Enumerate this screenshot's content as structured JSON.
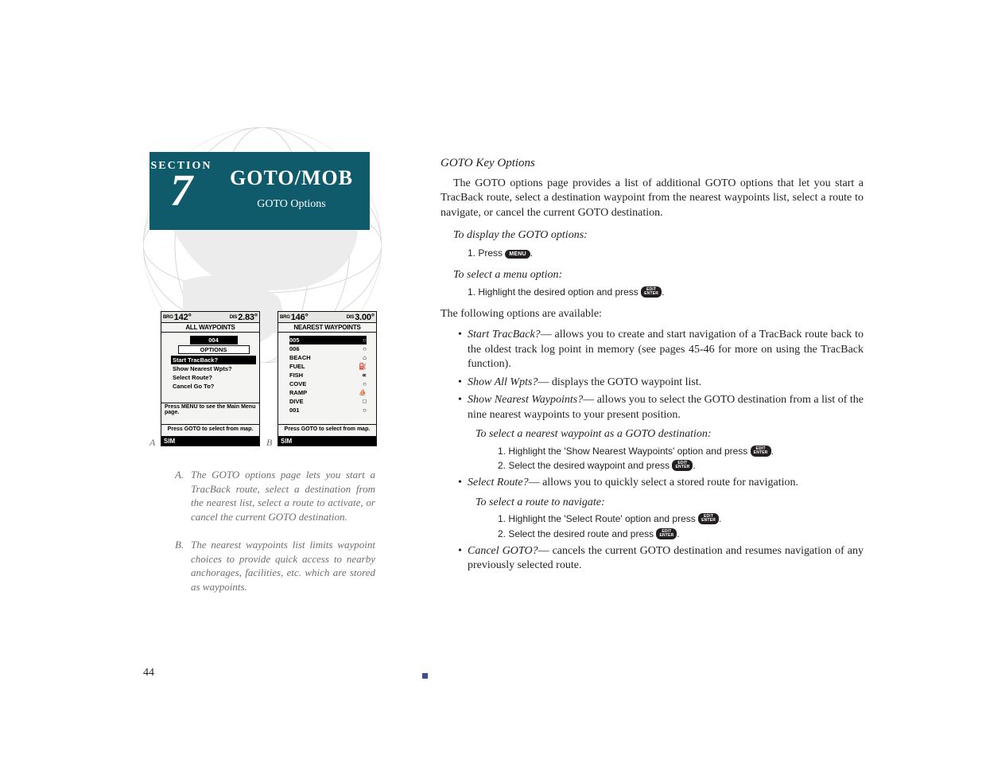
{
  "section": {
    "label": "SECTION",
    "number": "7",
    "title": "GOTO/MOB",
    "subtitle": "GOTO Options"
  },
  "screenshots": {
    "a": {
      "label": "A",
      "brg_label": "BRG",
      "brg_value": "142°",
      "dis_label": "DIS",
      "dis_value": "2.83°",
      "title": "ALL WAYPOINTS",
      "top_item": "004",
      "options_header": "OPTIONS",
      "items": [
        {
          "label": "Start TracBack?",
          "selected": true
        },
        {
          "label": "Show Nearest Wpts?",
          "selected": false
        },
        {
          "label": "Select Route?",
          "selected": false
        },
        {
          "label": "Cancel Go To?",
          "selected": false
        }
      ],
      "hint1": "Press MENU to see the Main Menu page.",
      "hint2": "Press GOTO to select from map.",
      "footer": "SIM"
    },
    "b": {
      "label": "B",
      "brg_label": "BRG",
      "brg_value": "146°",
      "dis_label": "DIS",
      "dis_value": "3.00°",
      "title": "NEAREST WAYPOINTS",
      "rows": [
        {
          "name": "005",
          "sym": "circle",
          "selected": true
        },
        {
          "name": "006",
          "sym": "circle"
        },
        {
          "name": "BEACH",
          "sym": "house"
        },
        {
          "name": "FUEL",
          "sym": "fuel"
        },
        {
          "name": "FISH",
          "sym": "fish"
        },
        {
          "name": "COVE",
          "sym": "circle"
        },
        {
          "name": "RAMP",
          "sym": "boat"
        },
        {
          "name": "DIVE",
          "sym": "square"
        },
        {
          "name": "001",
          "sym": "circle"
        }
      ],
      "hint": "Press GOTO to select from map.",
      "footer": "SIM"
    }
  },
  "captions": {
    "a": {
      "label": "A.",
      "text": "The GOTO options page lets you start a TracBack route, select a destination from the nearest list, select a route to activate, or cancel the current GOTO destination."
    },
    "b": {
      "label": "B.",
      "text": "The nearest waypoints list limits waypoint choices to provide quick access to nearby anchorages, facilities, etc. which are stored as waypoints."
    }
  },
  "main": {
    "heading": "GOTO Key Options",
    "intro": "The GOTO options page provides a list of additional GOTO options that let you start a TracBack route, select a destination waypoint from the nearest waypoints list, select a route to navigate, or cancel the current GOTO destination.",
    "instr1": "To display the GOTO options:",
    "step1_pre": "1. Press ",
    "step1_btn": "MENU",
    "instr2": "To select a menu option:",
    "step2_pre": "1. Highlight the desired option and press ",
    "enter_btn_top": "EDIT",
    "enter_btn_bot": "ENTER",
    "options_lead": "The following options are available:",
    "bullets": [
      {
        "name": "Start TracBack?",
        "text": "— allows you to create and start navigation of a TracBack route back to the oldest track log point in memory (see pages 45-46 for more on using the TracBack function)."
      },
      {
        "name": "Show All Wpts?",
        "text": "— displays the GOTO waypoint list."
      },
      {
        "name": "Show Nearest Waypoints?",
        "text": "— allows you to select the GOTO destination from a list of the nine nearest waypoints to your present position."
      }
    ],
    "sub1_instr": "To select a nearest waypoint as a GOTO destination:",
    "sub1_s1": "1. Highlight the 'Show Nearest Waypoints' option and press ",
    "sub1_s2": "2. Select the desired waypoint and press ",
    "bullet4": {
      "name": "Select Route?",
      "text": "— allows you to quickly select a stored route for navigation."
    },
    "sub2_instr": "To select a route to navigate:",
    "sub2_s1": "1. Highlight the 'Select Route' option and press ",
    "sub2_s2": "2. Select the desired route and press ",
    "bullet5": {
      "name": "Cancel GOTO?",
      "text": "— cancels the current GOTO destination and resumes navigation of any previously selected route."
    }
  },
  "page_number": "44"
}
